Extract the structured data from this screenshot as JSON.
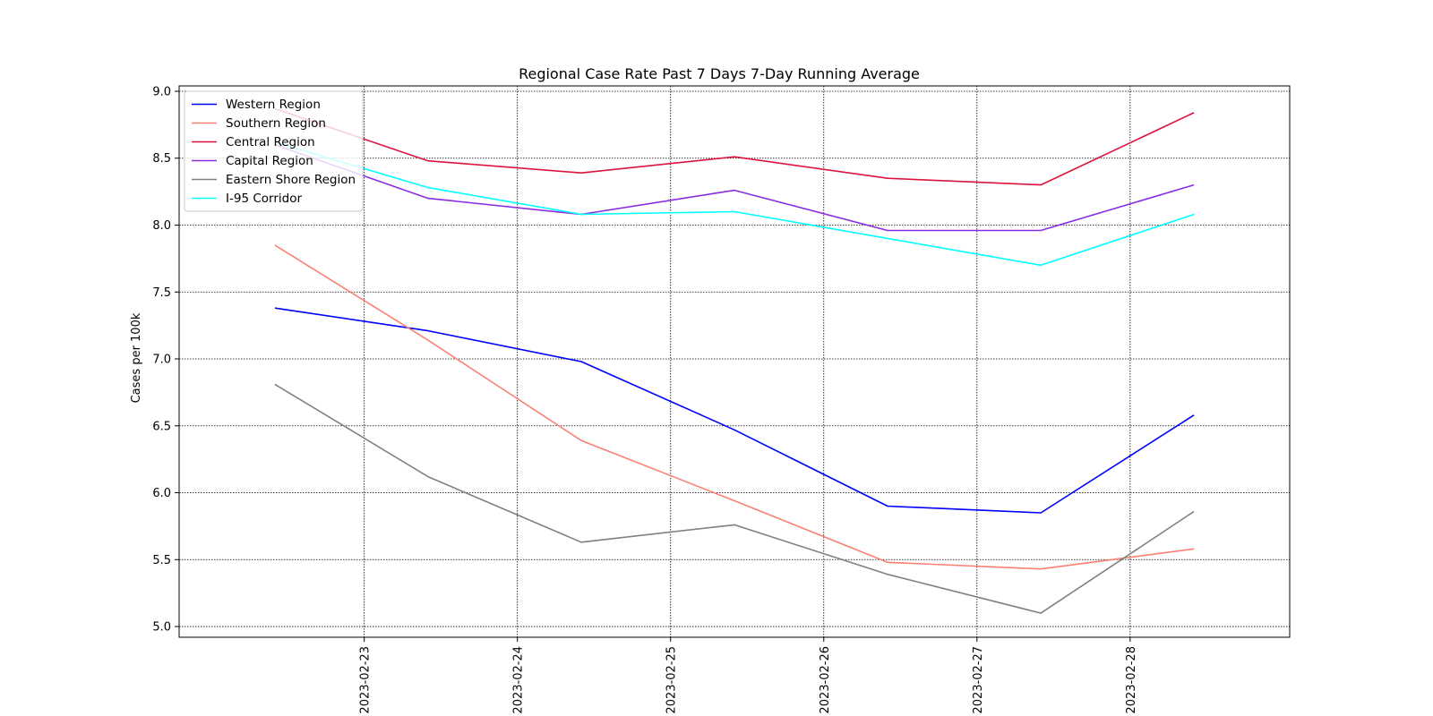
{
  "chart_data": {
    "type": "line",
    "title": "Regional Case Rate  Past 7 Days 7-Day Running Average",
    "xlabel": "",
    "ylabel": "Cases per 100k",
    "x_dates": [
      "2023-02-22 10:00",
      "2023-02-23 10:00",
      "2023-02-24 10:00",
      "2023-02-25 10:00",
      "2023-02-26 10:00",
      "2023-02-27 10:00",
      "2023-02-28 10:00"
    ],
    "x_ticks": [
      "2023-02-23",
      "2023-02-24",
      "2023-02-25",
      "2023-02-26",
      "2023-02-27",
      "2023-02-28"
    ],
    "xlim": [
      "2023-02-21 19:00",
      "2023-02-29 01:00"
    ],
    "ylim": [
      4.92,
      9.04
    ],
    "y_ticks": [
      "5.0",
      "5.5",
      "6.0",
      "6.5",
      "7.0",
      "7.5",
      "8.0",
      "8.5",
      "9.0"
    ],
    "grid": true,
    "legend_position": "top-left",
    "series": [
      {
        "name": "Western Region",
        "color": "#0000ff",
        "values": [
          7.38,
          7.21,
          6.98,
          6.47,
          5.9,
          5.85,
          6.58
        ]
      },
      {
        "name": "Southern Region",
        "color": "#fa8072",
        "values": [
          7.85,
          7.14,
          6.39,
          5.94,
          5.48,
          5.43,
          5.58
        ]
      },
      {
        "name": "Central Region",
        "color": "#dc143c",
        "values": [
          8.87,
          8.48,
          8.39,
          8.51,
          8.35,
          8.3,
          8.84
        ]
      },
      {
        "name": "Capital Region",
        "color": "#8a2be2",
        "values": [
          8.6,
          8.2,
          8.08,
          8.26,
          7.96,
          7.96,
          8.3
        ]
      },
      {
        "name": "Eastern Shore Region",
        "color": "#808080",
        "values": [
          6.81,
          6.12,
          5.63,
          5.76,
          5.39,
          5.1,
          5.86
        ]
      },
      {
        "name": "I-95 Corridor",
        "color": "#00ffff",
        "values": [
          8.62,
          8.28,
          8.08,
          8.1,
          7.9,
          7.7,
          8.08
        ]
      }
    ]
  }
}
